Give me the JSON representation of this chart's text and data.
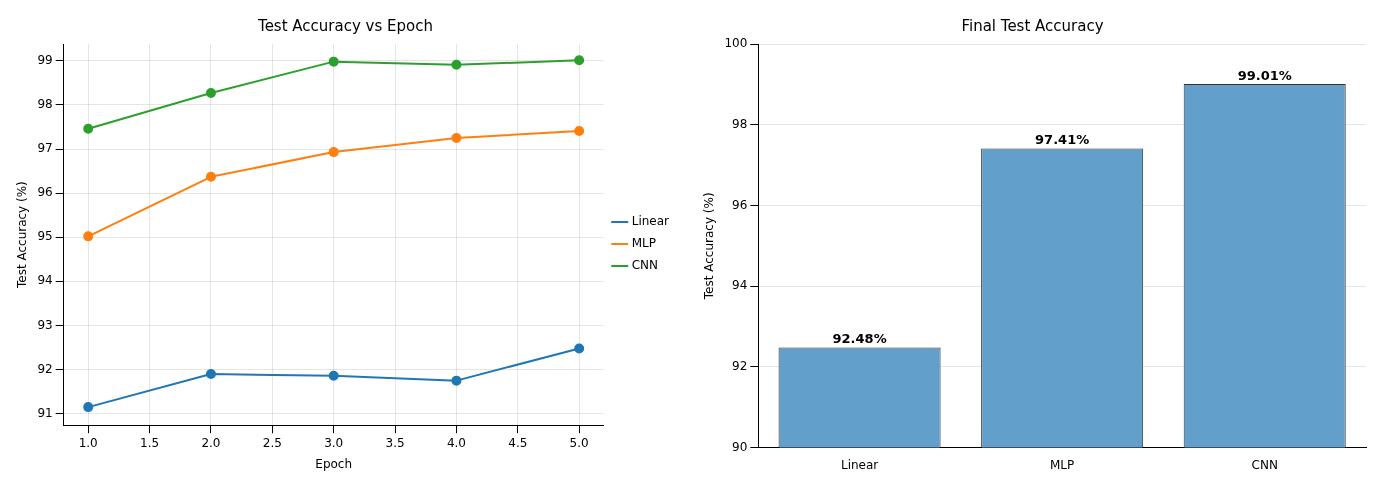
{
  "chart_data": [
    {
      "type": "line",
      "title": "Test Accuracy vs Epoch",
      "xlabel": "Epoch",
      "ylabel": "Test Accuracy (%)",
      "x": [
        1,
        2,
        3,
        4,
        5
      ],
      "series": [
        {
          "name": "Linear",
          "color": "#1f77b4",
          "values": [
            91.15,
            91.9,
            91.86,
            91.75,
            92.48
          ]
        },
        {
          "name": "MLP",
          "color": "#ff7f0e",
          "values": [
            95.02,
            96.37,
            96.93,
            97.25,
            97.41
          ]
        },
        {
          "name": "CNN",
          "color": "#2ca02c",
          "values": [
            97.46,
            98.27,
            98.98,
            98.91,
            99.01
          ]
        }
      ],
      "xlim": [
        0.8,
        5.2
      ],
      "xticks": [
        {
          "value": 1,
          "label": "1.0"
        },
        {
          "value": 1.5,
          "label": "1.5"
        },
        {
          "value": 2,
          "label": "2.0"
        },
        {
          "value": 2.5,
          "label": "2.5"
        },
        {
          "value": 3,
          "label": "3.0"
        },
        {
          "value": 3.5,
          "label": "3.5"
        },
        {
          "value": 4,
          "label": "4.0"
        },
        {
          "value": 4.5,
          "label": "4.5"
        },
        {
          "value": 5,
          "label": "5.0"
        }
      ],
      "ylim": [
        90.74,
        99.38
      ],
      "yticks": [
        91,
        92,
        93,
        94,
        95,
        96,
        97,
        98,
        99
      ],
      "grid": true,
      "legend": "right",
      "marker": "circle",
      "line_style": "solid"
    },
    {
      "type": "bar",
      "title": "Final Test Accuracy",
      "ylabel": "Test Accuracy (%)",
      "categories": [
        "Linear",
        "MLP",
        "CNN"
      ],
      "values": [
        92.48,
        97.41,
        99.01
      ],
      "color": "#62a0cb",
      "value_labels": [
        "92.48%",
        "97.41%",
        "99.01%"
      ],
      "ylim": [
        90,
        100
      ],
      "yticks": [
        90,
        92,
        94,
        96,
        98,
        100
      ],
      "grid": "y"
    }
  ]
}
